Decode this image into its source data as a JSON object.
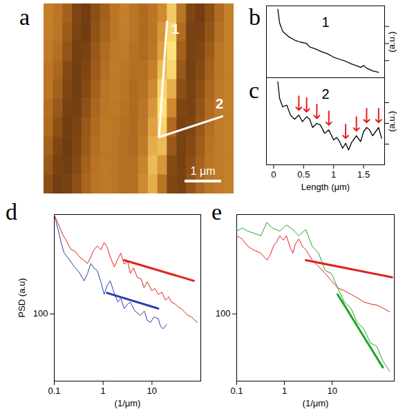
{
  "chart_data": [
    {
      "panel": "a",
      "type": "heatmap",
      "xlim": [
        0,
        5.2
      ],
      "ylim": [
        0,
        5.2
      ],
      "zlim": [
        0,
        1
      ],
      "tick_labels": false,
      "cells": [
        [
          0.6,
          0.55,
          0.45,
          0.3,
          0.25,
          0.35,
          0.45,
          0.55,
          0.6,
          0.55,
          0.5,
          0.55,
          0.65,
          0.9,
          0.55,
          0.3,
          0.25,
          0.35,
          0.5,
          0.6
        ],
        [
          0.6,
          0.55,
          0.42,
          0.28,
          0.25,
          0.37,
          0.47,
          0.55,
          0.6,
          0.55,
          0.5,
          0.55,
          0.7,
          0.95,
          0.5,
          0.28,
          0.27,
          0.38,
          0.52,
          0.6
        ],
        [
          0.58,
          0.52,
          0.38,
          0.26,
          0.28,
          0.4,
          0.5,
          0.57,
          0.58,
          0.53,
          0.5,
          0.56,
          0.75,
          1.0,
          0.45,
          0.27,
          0.3,
          0.42,
          0.55,
          0.6
        ],
        [
          0.56,
          0.48,
          0.33,
          0.25,
          0.3,
          0.42,
          0.52,
          0.58,
          0.56,
          0.52,
          0.52,
          0.6,
          0.85,
          0.95,
          0.4,
          0.26,
          0.32,
          0.45,
          0.56,
          0.6
        ],
        [
          0.55,
          0.45,
          0.3,
          0.25,
          0.33,
          0.45,
          0.55,
          0.58,
          0.55,
          0.5,
          0.53,
          0.65,
          0.95,
          0.8,
          0.35,
          0.27,
          0.35,
          0.48,
          0.57,
          0.6
        ],
        [
          0.52,
          0.4,
          0.27,
          0.26,
          0.36,
          0.48,
          0.56,
          0.57,
          0.54,
          0.5,
          0.55,
          0.7,
          1.0,
          0.65,
          0.3,
          0.28,
          0.38,
          0.5,
          0.58,
          0.6
        ],
        [
          0.5,
          0.36,
          0.25,
          0.28,
          0.4,
          0.5,
          0.57,
          0.56,
          0.53,
          0.5,
          0.56,
          0.75,
          0.95,
          0.5,
          0.28,
          0.3,
          0.4,
          0.52,
          0.58,
          0.6
        ],
        [
          0.45,
          0.3,
          0.24,
          0.3,
          0.42,
          0.52,
          0.57,
          0.55,
          0.52,
          0.5,
          0.58,
          0.8,
          0.85,
          0.4,
          0.27,
          0.32,
          0.43,
          0.54,
          0.58,
          0.6
        ],
        [
          0.4,
          0.27,
          0.25,
          0.33,
          0.45,
          0.54,
          0.57,
          0.55,
          0.52,
          0.52,
          0.62,
          0.85,
          0.7,
          0.33,
          0.27,
          0.35,
          0.46,
          0.55,
          0.58,
          0.6
        ],
        [
          0.35,
          0.25,
          0.27,
          0.36,
          0.48,
          0.55,
          0.57,
          0.55,
          0.52,
          0.53,
          0.65,
          0.8,
          0.55,
          0.3,
          0.28,
          0.38,
          0.48,
          0.56,
          0.58,
          0.6
        ]
      ],
      "lines": [
        {
          "label": "1",
          "x": [
            3.37,
            3.15
          ],
          "y": [
            0.48,
            3.65
          ]
        },
        {
          "label": "2",
          "x": [
            3.15,
            4.88
          ],
          "y": [
            3.65,
            3.08
          ]
        }
      ],
      "scale_bar": {
        "length": 1,
        "label": "1 μm"
      }
    },
    {
      "panel": "b",
      "type": "line",
      "label": "1",
      "color": "#000000",
      "x": [
        0.07,
        0.1,
        0.15,
        0.25,
        0.35,
        0.45,
        0.55,
        0.6,
        0.7,
        0.8,
        0.9,
        1.0,
        1.1,
        1.2,
        1.3,
        1.4,
        1.45,
        1.5,
        1.55,
        1.65,
        1.75
      ],
      "values": [
        1.0,
        0.8,
        0.68,
        0.6,
        0.55,
        0.52,
        0.5,
        0.45,
        0.42,
        0.38,
        0.35,
        0.3,
        0.27,
        0.24,
        0.2,
        0.17,
        0.15,
        0.18,
        0.14,
        0.1,
        0.08
      ],
      "xlim": [
        -0.12,
        1.85
      ],
      "ylim": [
        0,
        1.05
      ],
      "yticks": [
        0.25,
        0.5,
        0.75
      ],
      "y_label": "(a.u.)",
      "tick_labels": false
    },
    {
      "panel": "c",
      "type": "line",
      "label": "2",
      "color": "#000000",
      "x": [
        0.07,
        0.1,
        0.15,
        0.22,
        0.28,
        0.35,
        0.42,
        0.48,
        0.55,
        0.6,
        0.65,
        0.72,
        0.78,
        0.85,
        0.92,
        1.0,
        1.05,
        1.1,
        1.15,
        1.2,
        1.25,
        1.3,
        1.38,
        1.45,
        1.5,
        1.55,
        1.6,
        1.65,
        1.7,
        1.75,
        1.8
      ],
      "values": [
        1.0,
        0.8,
        0.7,
        0.72,
        0.6,
        0.55,
        0.6,
        0.52,
        0.58,
        0.55,
        0.45,
        0.5,
        0.48,
        0.38,
        0.42,
        0.3,
        0.33,
        0.28,
        0.2,
        0.26,
        0.18,
        0.27,
        0.35,
        0.28,
        0.4,
        0.45,
        0.42,
        0.35,
        0.4,
        0.45,
        0.32
      ],
      "arrows": {
        "color": "#e3201b",
        "x": [
          0.42,
          0.55,
          0.72,
          0.92,
          1.2,
          1.38,
          1.55,
          1.75
        ],
        "y": [
          0.66,
          0.64,
          0.56,
          0.48,
          0.32,
          0.41,
          0.51,
          0.51
        ]
      },
      "xlim": [
        -0.12,
        1.85
      ],
      "ylim": [
        0,
        1.05
      ],
      "xticks": [
        0,
        0.5,
        1,
        1.5
      ],
      "yticks": [
        0.25,
        0.5,
        0.75
      ],
      "x_label": "Length (μm)",
      "y_label": "(a.u.)",
      "tick_labels": "x"
    },
    {
      "panel": "d",
      "type": "line",
      "log": true,
      "xlim": [
        0.1,
        100
      ],
      "ylim": [
        10,
        3000
      ],
      "xticks": [
        0.1,
        1,
        10
      ],
      "yticks": [
        100
      ],
      "x_label": "(1/μm)",
      "y_label": "PSD (a.u)",
      "series": [
        {
          "color": "#e3201b",
          "x": [
            0.1,
            0.12,
            0.15,
            0.18,
            0.22,
            0.27,
            0.33,
            0.4,
            0.48,
            0.56,
            0.65,
            0.76,
            0.9,
            1.05,
            1.2,
            1.4,
            1.7,
            2,
            2.3,
            2.7,
            3.2,
            3.6,
            4.2,
            5,
            6,
            6.9,
            8,
            10,
            11.5,
            13.5,
            16,
            19,
            22,
            25,
            30,
            35,
            40,
            46,
            55,
            65,
            75,
            85
          ],
          "values": [
            2960,
            2200,
            1500,
            1200,
            910,
            850,
            700,
            630,
            560,
            700,
            900,
            1020,
            900,
            1150,
            1000,
            700,
            500,
            650,
            800,
            550,
            600,
            400,
            480,
            350,
            330,
            245,
            300,
            220,
            240,
            195,
            210,
            160,
            180,
            150,
            140,
            125,
            120,
            107,
            95,
            90,
            80,
            75
          ]
        },
        {
          "color": "#2b3ea8",
          "x": [
            0.1,
            0.12,
            0.14,
            0.16,
            0.2,
            0.26,
            0.32,
            0.41,
            0.48,
            0.56,
            0.65,
            0.76,
            0.9,
            1.05,
            1.2,
            1.4,
            1.7,
            2,
            2.3,
            2.7,
            3.2,
            3.6,
            4.5,
            5.8,
            7,
            8,
            9.4,
            11,
            13.5,
            15,
            17,
            20
          ],
          "values": [
            2960,
            1800,
            1100,
            800,
            650,
            500,
            420,
            310,
            400,
            560,
            480,
            440,
            300,
            195,
            260,
            310,
            200,
            150,
            170,
            120,
            140,
            150,
            110,
            95,
            110,
            80,
            75,
            90,
            85,
            65,
            60,
            70
          ]
        }
      ],
      "fits": [
        {
          "color": "#e3201b",
          "x": [
            2.7,
            72
          ],
          "values": [
            630,
            310
          ]
        },
        {
          "color": "#2b3ea8",
          "x": [
            1.2,
            13.5
          ],
          "values": [
            205,
            120
          ]
        }
      ]
    },
    {
      "panel": "e",
      "type": "line",
      "log": true,
      "xlim": [
        0.1,
        200
      ],
      "ylim": [
        10,
        3000
      ],
      "xticks": [
        0.1,
        1,
        10
      ],
      "yticks": [
        100
      ],
      "x_label": "(1/μm)",
      "series": [
        {
          "color": "#e3201b",
          "x": [
            0.1,
            0.13,
            0.17,
            0.22,
            0.32,
            0.43,
            0.5,
            0.59,
            0.7,
            0.8,
            0.95,
            1.1,
            1.3,
            1.5,
            1.7,
            2,
            2.4,
            2.8,
            3.3,
            3.8,
            5,
            7.1,
            9,
            13,
            18,
            25,
            35,
            46,
            65,
            86,
            120,
            160
          ],
          "values": [
            1450,
            1300,
            1020,
            900,
            800,
            630,
            750,
            1020,
            1200,
            1450,
            1250,
            1450,
            1000,
            800,
            1100,
            1300,
            1000,
            900,
            750,
            630,
            520,
            400,
            330,
            245,
            220,
            195,
            170,
            150,
            140,
            135,
            120,
            107
          ]
        },
        {
          "color": "#22a322",
          "x": [
            0.1,
            0.13,
            0.17,
            0.22,
            0.32,
            0.43,
            0.55,
            0.8,
            1.1,
            1.5,
            2,
            2.8,
            3.8,
            5.2,
            7.1,
            9.6,
            13,
            18,
            25,
            33,
            46,
            63,
            86,
            115,
            160
          ],
          "values": [
            1700,
            1900,
            1700,
            1600,
            1450,
            2300,
            1900,
            1700,
            2100,
            1800,
            1450,
            1800,
            1020,
            800,
            440,
            400,
            245,
            150,
            120,
            75,
            60,
            37,
            33,
            20,
            14
          ]
        }
      ],
      "fits": [
        {
          "color": "#e3201b",
          "x": [
            2.8,
            180
          ],
          "values": [
            630,
            350
          ]
        },
        {
          "color": "#22a322",
          "x": [
            13,
            115
          ],
          "values": [
            195,
            16
          ]
        }
      ]
    }
  ]
}
